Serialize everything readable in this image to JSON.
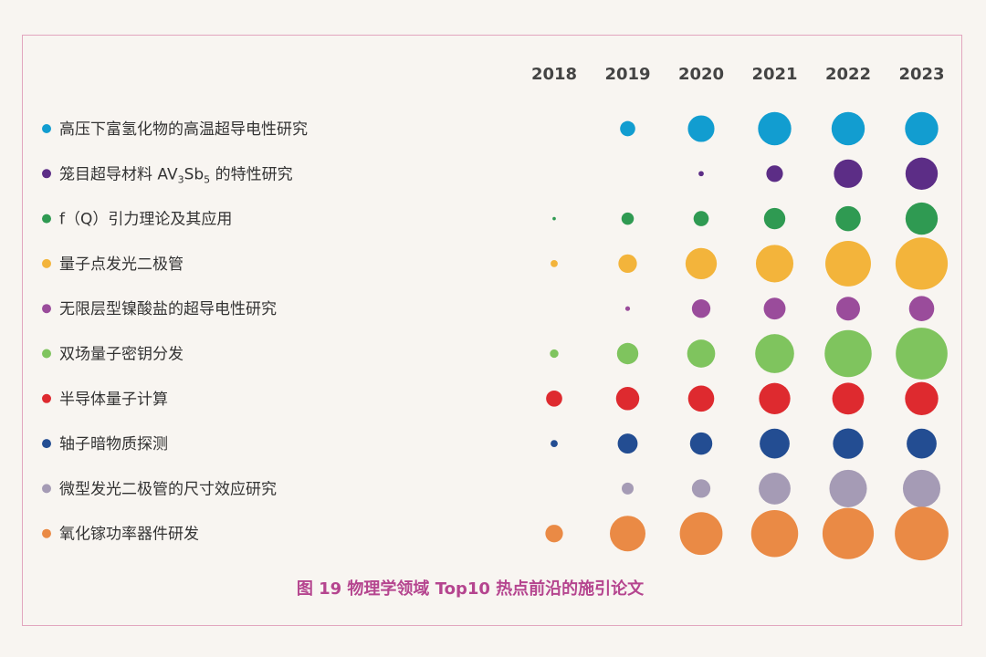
{
  "chart_data": {
    "type": "scatter",
    "title": "图 19  物理学领域 Top10 热点前沿的施引论文",
    "categories": [
      "2018",
      "2019",
      "2020",
      "2021",
      "2022",
      "2023"
    ],
    "series": [
      {
        "name": "高压下富氢化物的高温超导电性研究",
        "color": "#129dd0",
        "values": [
          0,
          0.32,
          0.56,
          0.7,
          0.7,
          0.7
        ]
      },
      {
        "name_parts": [
          "笼目超导材料 AV",
          "3",
          "Sb",
          "5",
          " 的特性研究"
        ],
        "name": "笼目超导材料 AV3Sb5 的特性研究",
        "color": "#5c2d86",
        "values": [
          0,
          0,
          0.11,
          0.35,
          0.6,
          0.68
        ]
      },
      {
        "name": "f（Q）引力理论及其应用",
        "color": "#2f9a52",
        "values": [
          0.07,
          0.26,
          0.32,
          0.45,
          0.53,
          0.68
        ]
      },
      {
        "name": "量子点发光二极管",
        "color": "#f3b43b",
        "values": [
          0.15,
          0.39,
          0.66,
          0.79,
          0.96,
          1.1
        ]
      },
      {
        "name": "无限层型镍酸盐的超导电性研究",
        "color": "#9a4c9b",
        "values": [
          0,
          0.1,
          0.39,
          0.46,
          0.5,
          0.53
        ]
      },
      {
        "name": "双场量子密钥分发",
        "color": "#7fc45e",
        "values": [
          0.18,
          0.45,
          0.59,
          0.82,
          0.99,
          1.09
        ]
      },
      {
        "name": "半导体量子计算",
        "color": "#de2a2f",
        "values": [
          0.34,
          0.49,
          0.55,
          0.66,
          0.67,
          0.7
        ]
      },
      {
        "name": "轴子暗物质探测",
        "color": "#234d92",
        "values": [
          0.15,
          0.42,
          0.47,
          0.63,
          0.64,
          0.63
        ]
      },
      {
        "name": "微型发光二极管的尺寸效应研究",
        "color": "#a59bb5",
        "values": [
          0,
          0.25,
          0.39,
          0.67,
          0.79,
          0.79
        ]
      },
      {
        "name": "氧化镓功率器件研发",
        "color": "#ea8a45",
        "values": [
          0.37,
          0.75,
          0.9,
          0.99,
          1.08,
          1.13
        ]
      }
    ]
  }
}
